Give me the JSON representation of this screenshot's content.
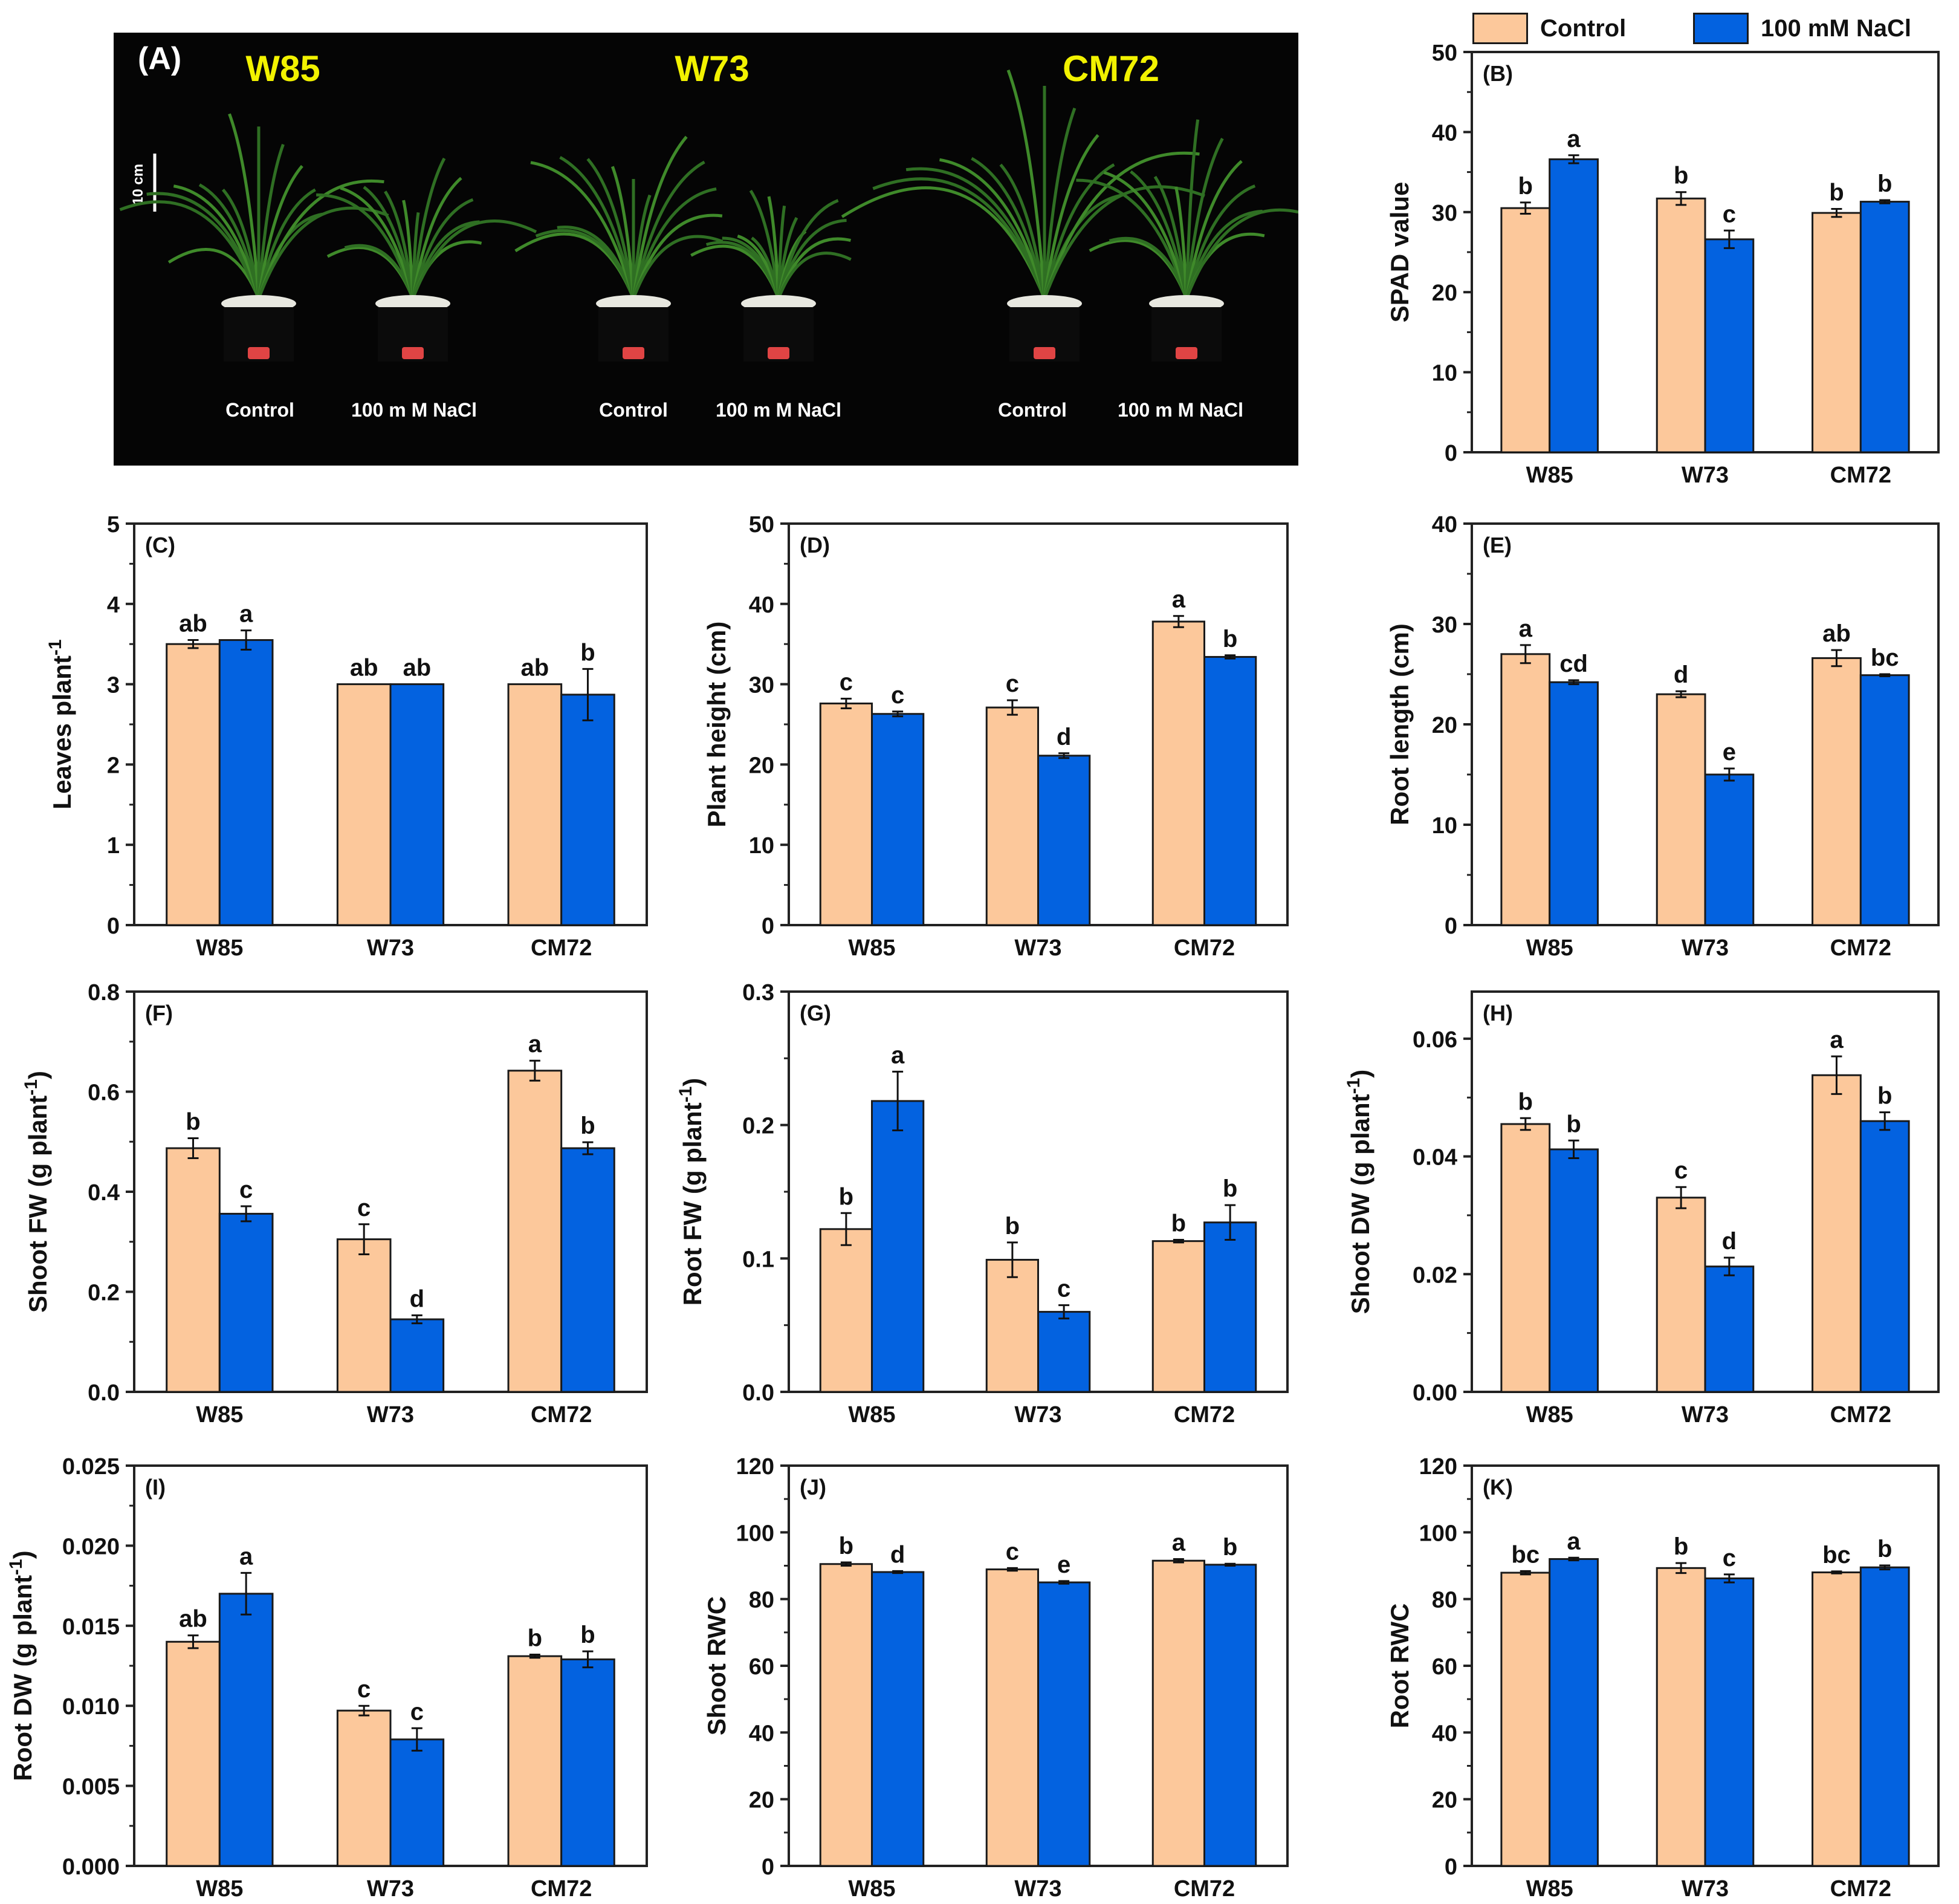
{
  "legend": {
    "control_label": "Control",
    "nacl_label": "100 mM NaCl",
    "control_color": "#FCC89B",
    "nacl_color": "#0362E0"
  },
  "photo": {
    "panel_label": "(A)",
    "scale_label": "10 cm",
    "genotypes": [
      "W85",
      "W73",
      "CM72"
    ],
    "treatment_labels": [
      "Control",
      "100 m M NaCl",
      "Control",
      "100 m M NaCl",
      "Control",
      "100 m M NaCl"
    ],
    "label_color": "#F2F200"
  },
  "chart_data": [
    {
      "id": "B",
      "type": "bar",
      "panel_label": "(B)",
      "ylabel": "SPAD value",
      "categories": [
        "W85",
        "W73",
        "CM72"
      ],
      "ylim": [
        0,
        50
      ],
      "ticks": [
        "0",
        "10",
        "20",
        "30",
        "40",
        "50"
      ],
      "series": [
        {
          "name": "Control",
          "values": [
            30.5,
            31.7,
            29.9
          ],
          "errors": [
            0.7,
            0.8,
            0.5
          ],
          "letters": [
            "b",
            "b",
            "b"
          ]
        },
        {
          "name": "100 mM NaCl",
          "values": [
            36.6,
            26.6,
            31.3
          ],
          "errors": [
            0.5,
            1.1,
            0.2
          ],
          "letters": [
            "a",
            "c",
            "b"
          ]
        }
      ]
    },
    {
      "id": "C",
      "type": "bar",
      "panel_label": "(C)",
      "ylabel": "Leaves plant",
      "ylabel_sup": "-1",
      "categories": [
        "W85",
        "W73",
        "CM72"
      ],
      "ylim": [
        0,
        5
      ],
      "ticks": [
        "0",
        "1",
        "2",
        "3",
        "4",
        "5"
      ],
      "series": [
        {
          "name": "Control",
          "values": [
            3.5,
            3.0,
            3.0
          ],
          "errors": [
            0.05,
            0.0,
            0.0
          ],
          "letters": [
            "ab",
            "ab",
            "ab"
          ]
        },
        {
          "name": "100 mM NaCl",
          "values": [
            3.55,
            3.0,
            2.87
          ],
          "errors": [
            0.12,
            0.0,
            0.32
          ],
          "letters": [
            "a",
            "ab",
            "b"
          ]
        }
      ]
    },
    {
      "id": "D",
      "type": "bar",
      "panel_label": "(D)",
      "ylabel": "Plant height (cm)",
      "categories": [
        "W85",
        "W73",
        "CM72"
      ],
      "ylim": [
        0,
        50
      ],
      "ticks": [
        "0",
        "10",
        "20",
        "30",
        "40",
        "50"
      ],
      "series": [
        {
          "name": "Control",
          "values": [
            27.6,
            27.1,
            37.8
          ],
          "errors": [
            0.6,
            0.9,
            0.7
          ],
          "letters": [
            "c",
            "c",
            "a"
          ]
        },
        {
          "name": "100 mM NaCl",
          "values": [
            26.3,
            21.1,
            33.4
          ],
          "errors": [
            0.3,
            0.3,
            0.2
          ],
          "letters": [
            "c",
            "d",
            "b"
          ]
        }
      ]
    },
    {
      "id": "E",
      "type": "bar",
      "panel_label": "(E)",
      "ylabel": "Root length (cm)",
      "categories": [
        "W85",
        "W73",
        "CM72"
      ],
      "ylim": [
        0,
        40
      ],
      "ticks": [
        "0",
        "10",
        "20",
        "30",
        "40"
      ],
      "series": [
        {
          "name": "Control",
          "values": [
            27.0,
            23.0,
            26.6
          ],
          "errors": [
            0.9,
            0.3,
            0.8
          ],
          "letters": [
            "a",
            "d",
            "ab"
          ]
        },
        {
          "name": "100 mM NaCl",
          "values": [
            24.2,
            15.0,
            24.9
          ],
          "errors": [
            0.2,
            0.6,
            0.1
          ],
          "letters": [
            "cd",
            "e",
            "bc"
          ]
        }
      ]
    },
    {
      "id": "F",
      "type": "bar",
      "panel_label": "(F)",
      "ylabel": "Shoot FW (g plant",
      "ylabel_sup": "-1",
      "ylabel_tail": ")",
      "categories": [
        "W85",
        "W73",
        "CM72"
      ],
      "ylim": [
        0,
        0.8
      ],
      "ticks": [
        "0.0",
        "0.2",
        "0.4",
        "0.6",
        "0.8"
      ],
      "series": [
        {
          "name": "Control",
          "values": [
            0.487,
            0.305,
            0.642
          ],
          "errors": [
            0.02,
            0.03,
            0.02
          ],
          "letters": [
            "b",
            "c",
            "a"
          ]
        },
        {
          "name": "100 mM NaCl",
          "values": [
            0.356,
            0.145,
            0.487
          ],
          "errors": [
            0.015,
            0.008,
            0.012
          ],
          "letters": [
            "c",
            "d",
            "b"
          ]
        }
      ]
    },
    {
      "id": "G",
      "type": "bar",
      "panel_label": "(G)",
      "ylabel": "Root FW (g plant",
      "ylabel_sup": "-1",
      "ylabel_tail": ")",
      "categories": [
        "W85",
        "W73",
        "CM72"
      ],
      "ylim": [
        0,
        0.3
      ],
      "ticks": [
        "0.0",
        "0.1",
        "0.2",
        "0.3"
      ],
      "series": [
        {
          "name": "Control",
          "values": [
            0.122,
            0.099,
            0.113
          ],
          "errors": [
            0.012,
            0.013,
            0.001
          ],
          "letters": [
            "b",
            "b",
            "b"
          ]
        },
        {
          "name": "100 mM NaCl",
          "values": [
            0.218,
            0.06,
            0.127
          ],
          "errors": [
            0.022,
            0.005,
            0.013
          ],
          "letters": [
            "a",
            "c",
            "b"
          ]
        }
      ]
    },
    {
      "id": "H",
      "type": "bar",
      "panel_label": "(H)",
      "ylabel": "Shoot DW (g plant",
      "ylabel_sup": "-1",
      "ylabel_tail": ")",
      "categories": [
        "W85",
        "W73",
        "CM72"
      ],
      "ylim": [
        0,
        0.068
      ],
      "ticks": [
        "0.00",
        "0.02",
        "0.04",
        "0.06"
      ],
      "tick_values": [
        0,
        0.02,
        0.04,
        0.06
      ],
      "series": [
        {
          "name": "Control",
          "values": [
            0.0455,
            0.033,
            0.0538
          ],
          "errors": [
            0.001,
            0.0018,
            0.0032
          ],
          "letters": [
            "b",
            "c",
            "a"
          ]
        },
        {
          "name": "100 mM NaCl",
          "values": [
            0.0412,
            0.0213,
            0.046
          ],
          "errors": [
            0.0015,
            0.0015,
            0.0015
          ],
          "letters": [
            "b",
            "d",
            "b"
          ]
        }
      ]
    },
    {
      "id": "I",
      "type": "bar",
      "panel_label": "(I)",
      "ylabel": "Root DW (g plant",
      "ylabel_sup": "-1",
      "ylabel_tail": ")",
      "categories": [
        "W85",
        "W73",
        "CM72"
      ],
      "ylim": [
        0,
        0.025
      ],
      "ticks": [
        "0.000",
        "0.005",
        "0.010",
        "0.015",
        "0.020",
        "0.025"
      ],
      "series": [
        {
          "name": "Control",
          "values": [
            0.014,
            0.0097,
            0.0131
          ],
          "errors": [
            0.0004,
            0.0003,
            0.0001
          ],
          "letters": [
            "ab",
            "c",
            "b"
          ]
        },
        {
          "name": "100 mM NaCl",
          "values": [
            0.017,
            0.0079,
            0.0129
          ],
          "errors": [
            0.0013,
            0.0007,
            0.0005
          ],
          "letters": [
            "a",
            "c",
            "b"
          ]
        }
      ]
    },
    {
      "id": "J",
      "type": "bar",
      "panel_label": "(J)",
      "ylabel": "Shoot RWC",
      "categories": [
        "W85",
        "W73",
        "CM72"
      ],
      "ylim": [
        0,
        120
      ],
      "ticks": [
        "0",
        "20",
        "40",
        "60",
        "80",
        "100",
        "120"
      ],
      "series": [
        {
          "name": "Control",
          "values": [
            90.5,
            88.9,
            91.5
          ],
          "errors": [
            0.5,
            0.4,
            0.5
          ],
          "letters": [
            "b",
            "c",
            "a"
          ]
        },
        {
          "name": "100 mM NaCl",
          "values": [
            88.1,
            85.0,
            90.3
          ],
          "errors": [
            0.3,
            0.4,
            0.3
          ],
          "letters": [
            "d",
            "e",
            "b"
          ]
        }
      ]
    },
    {
      "id": "K",
      "type": "bar",
      "panel_label": "(K)",
      "ylabel": "Root RWC",
      "categories": [
        "W85",
        "W73",
        "CM72"
      ],
      "ylim": [
        0,
        120
      ],
      "ticks": [
        "0",
        "20",
        "40",
        "60",
        "80",
        "100",
        "120"
      ],
      "series": [
        {
          "name": "Control",
          "values": [
            87.9,
            89.3,
            88.0
          ],
          "errors": [
            0.5,
            1.5,
            0.3
          ],
          "letters": [
            "bc",
            "b",
            "bc"
          ]
        },
        {
          "name": "100 mM NaCl",
          "values": [
            92.0,
            86.2,
            89.5
          ],
          "errors": [
            0.4,
            1.2,
            0.6
          ],
          "letters": [
            "a",
            "c",
            "b"
          ]
        }
      ]
    }
  ]
}
